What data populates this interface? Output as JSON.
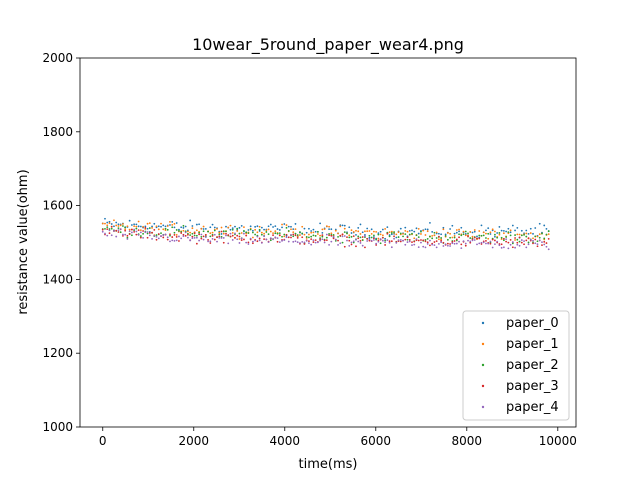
{
  "chart_data": {
    "type": "scatter",
    "title": "10wear_5round_paper_wear4.png",
    "xlabel": "time(ms)",
    "ylabel": "resistance value(ohm)",
    "xlim": [
      -500,
      10400
    ],
    "ylim": [
      1000,
      2000
    ],
    "xticks": [
      0,
      2000,
      4000,
      6000,
      8000,
      10000
    ],
    "yticks": [
      1000,
      1200,
      1400,
      1600,
      1800,
      2000
    ],
    "legend_position": "lower-right",
    "grid": false,
    "point_count_per_series": 200,
    "x_range": [
      0,
      9800
    ],
    "series": [
      {
        "name": "paper_0",
        "color": "#1f77b4",
        "trend": [
          [
            0,
            1550
          ],
          [
            2000,
            1540
          ],
          [
            6000,
            1530
          ],
          [
            9800,
            1530
          ]
        ],
        "spread": 15
      },
      {
        "name": "paper_1",
        "color": "#ff7f0e",
        "trend": [
          [
            0,
            1545
          ],
          [
            2000,
            1535
          ],
          [
            6000,
            1525
          ],
          [
            9800,
            1520
          ]
        ],
        "spread": 14
      },
      {
        "name": "paper_2",
        "color": "#2ca02c",
        "trend": [
          [
            0,
            1535
          ],
          [
            2000,
            1525
          ],
          [
            6000,
            1515
          ],
          [
            9800,
            1515
          ]
        ],
        "spread": 14
      },
      {
        "name": "paper_3",
        "color": "#d62728",
        "trend": [
          [
            0,
            1530
          ],
          [
            2000,
            1515
          ],
          [
            6000,
            1505
          ],
          [
            9800,
            1500
          ]
        ],
        "spread": 13
      },
      {
        "name": "paper_4",
        "color": "#9467bd",
        "trend": [
          [
            0,
            1525
          ],
          [
            2000,
            1510
          ],
          [
            6000,
            1500
          ],
          [
            9800,
            1495
          ]
        ],
        "spread": 13
      }
    ]
  }
}
